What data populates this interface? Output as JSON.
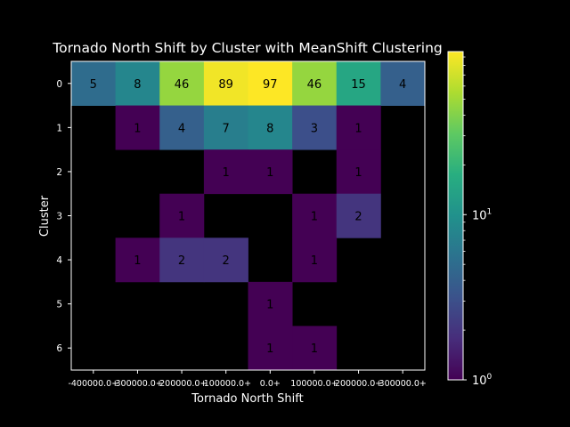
{
  "chart_data": {
    "type": "heatmap",
    "title": "Tornado North Shift by Cluster with MeanShift Clustering",
    "xlabel": "Tornado North Shift",
    "ylabel": "Cluster",
    "x_categories": [
      "-400000.0+",
      "-300000.0+",
      "-200000.0+",
      "-100000.0+",
      "0.0+",
      "100000.0+",
      "200000.0+",
      "300000.0+"
    ],
    "y_categories": [
      "0",
      "1",
      "2",
      "3",
      "4",
      "5",
      "6"
    ],
    "values": [
      [
        5,
        8,
        46,
        89,
        97,
        46,
        15,
        4
      ],
      [
        null,
        1,
        4,
        7,
        8,
        3,
        1,
        null
      ],
      [
        null,
        null,
        null,
        1,
        1,
        null,
        1,
        null
      ],
      [
        null,
        null,
        1,
        null,
        null,
        1,
        2,
        null
      ],
      [
        null,
        1,
        2,
        2,
        null,
        1,
        null,
        null
      ],
      [
        null,
        null,
        null,
        null,
        1,
        null,
        null,
        null
      ],
      [
        null,
        null,
        null,
        null,
        1,
        1,
        null,
        null
      ]
    ],
    "colorbar": {
      "scale": "log",
      "colormap": "viridis",
      "range": [
        1,
        97
      ],
      "tick_labels": [
        {
          "base": "10",
          "exp": "0",
          "value": 1
        },
        {
          "base": "10",
          "exp": "1",
          "value": 10
        }
      ]
    },
    "grid": false,
    "colors": {
      "background": "#000000",
      "foreground": "#ffffff",
      "cell_text": "#000000",
      "empty_cell": "#000000"
    }
  }
}
